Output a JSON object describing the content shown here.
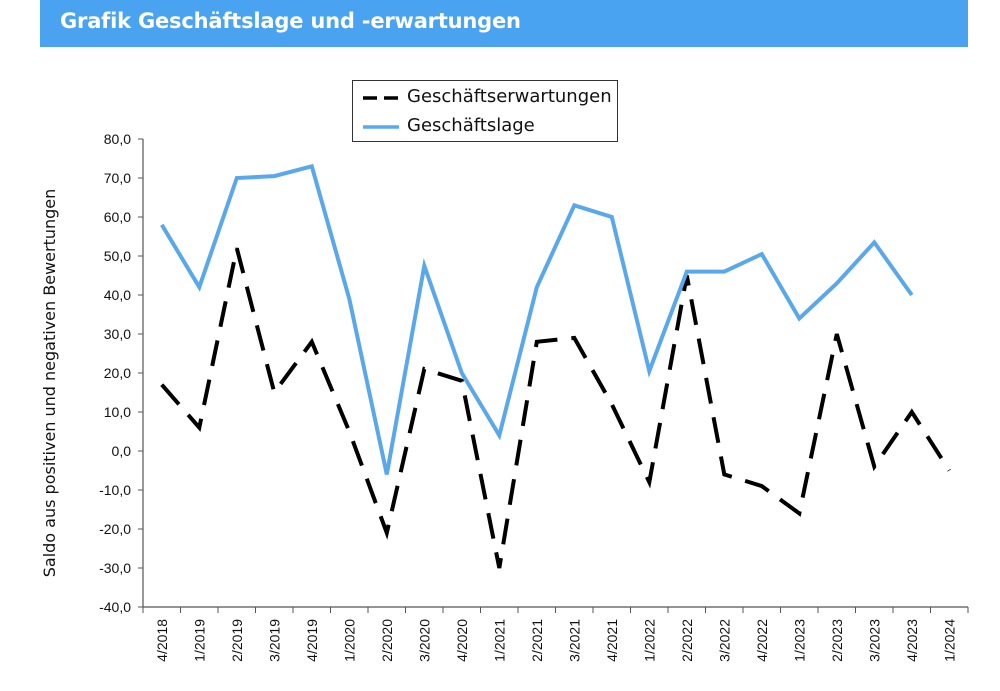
{
  "header": {
    "title": "Grafik Geschäftslage und -erwartungen"
  },
  "colors": {
    "banner": "#4aa3f0",
    "geschaeftslage": "#5aa8ec",
    "geschaeftserwartungen": "#000000"
  },
  "chart_data": {
    "type": "line",
    "title": "",
    "xlabel": "",
    "ylabel": "Saldo aus positiven und negativen Bewertungen",
    "ylim": [
      -40,
      80
    ],
    "yticks": [
      "80,0",
      "70,0",
      "60,0",
      "50,0",
      "40,0",
      "30,0",
      "20,0",
      "10,0",
      "0,0",
      "-10,0",
      "-20,0",
      "-30,0",
      "-40,0"
    ],
    "categories": [
      "4/2018",
      "1/2019",
      "2/2019",
      "3/2019",
      "4/2019",
      "1/2020",
      "2/2020",
      "3/2020",
      "4/2020",
      "1/2021",
      "2/2021",
      "3/2021",
      "4/2021",
      "1/2022",
      "2/2022",
      "3/2022",
      "4/2022",
      "1/2023",
      "2/2023",
      "3/2023",
      "4/2023",
      "1/2024"
    ],
    "legend_position": "top-center",
    "grid": false,
    "series": [
      {
        "name": "Geschäftserwartungen",
        "style": "dashed",
        "values": [
          17,
          6,
          52,
          15,
          28,
          5,
          -21,
          21,
          18,
          -30,
          28,
          29,
          12,
          -8,
          45,
          -6,
          -9,
          -16,
          30,
          -4,
          10,
          -5
        ]
      },
      {
        "name": "Geschäftslage",
        "style": "solid",
        "values": [
          58,
          42,
          70,
          70.5,
          73,
          39,
          -6,
          47.5,
          20,
          4,
          42,
          63,
          60,
          20.5,
          46,
          46,
          50.5,
          34,
          43,
          53.5,
          40,
          null
        ]
      }
    ]
  }
}
